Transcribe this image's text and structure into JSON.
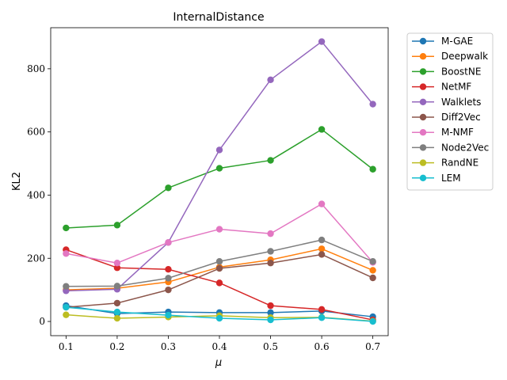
{
  "chart_data": {
    "type": "line",
    "title": "InternalDistance",
    "xlabel": "μ",
    "ylabel": "KL2",
    "x": [
      0.1,
      0.2,
      0.3,
      0.4,
      0.5,
      0.6,
      0.7
    ],
    "x_tick_labels": [
      "0.1",
      "0.2",
      "0.3",
      "0.4",
      "0.5",
      "0.6",
      "0.7"
    ],
    "xlim": [
      0.07,
      0.73
    ],
    "yticks": [
      0,
      200,
      400,
      600,
      800
    ],
    "y_tick_labels": [
      "0",
      "200",
      "400",
      "600",
      "800"
    ],
    "ylim": [
      -45,
      930
    ],
    "grid": false,
    "legend_position": "outside-right",
    "series": [
      {
        "name": "M-GAE",
        "color": "#1f77b4",
        "values": [
          50,
          25,
          30,
          28,
          28,
          33,
          15
        ]
      },
      {
        "name": "Deepwalk",
        "color": "#ff7f0e",
        "values": [
          100,
          105,
          125,
          172,
          195,
          230,
          162
        ]
      },
      {
        "name": "BoostNE",
        "color": "#2ca02c",
        "values": [
          296,
          305,
          423,
          485,
          510,
          608,
          482
        ]
      },
      {
        "name": "NetMF",
        "color": "#d62728",
        "values": [
          227,
          170,
          165,
          122,
          50,
          38,
          5
        ]
      },
      {
        "name": "Walklets",
        "color": "#9467bd",
        "values": [
          97,
          102,
          250,
          543,
          765,
          886,
          688
        ]
      },
      {
        "name": "Diff2Vec",
        "color": "#8c564b",
        "values": [
          45,
          58,
          100,
          168,
          185,
          212,
          138
        ]
      },
      {
        "name": "M-NMF",
        "color": "#e377c2",
        "values": [
          215,
          185,
          250,
          292,
          278,
          372,
          187
        ]
      },
      {
        "name": "Node2Vec",
        "color": "#7f7f7f",
        "values": [
          111,
          112,
          137,
          190,
          222,
          258,
          190
        ]
      },
      {
        "name": "RandNE",
        "color": "#bcbd22",
        "values": [
          21,
          10,
          14,
          18,
          12,
          13,
          1
        ]
      },
      {
        "name": "LEM",
        "color": "#17becf",
        "values": [
          45,
          30,
          20,
          10,
          5,
          12,
          0
        ]
      }
    ]
  }
}
